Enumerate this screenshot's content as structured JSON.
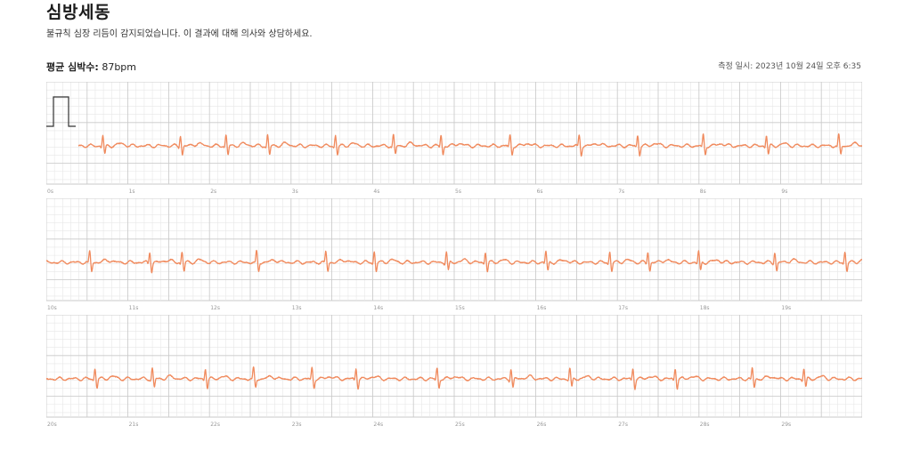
{
  "header": {
    "title": "심방세동",
    "subtitle": "불규칙 심장 리듬이 감지되었습니다. 이 결과에 대해 의사와 상담하세요.",
    "avg_label": "평균 심박수:",
    "avg_value": "87bpm",
    "timestamp": "측정 일시: 2023년 10월 24일 오후 6:35"
  },
  "colors": {
    "trace": "#f08a5d",
    "grid_minor": "#e7e7e7",
    "grid_major": "#c9c9c9",
    "calibration": "#333333"
  },
  "strips": [
    {
      "ticks": [
        "0s",
        "1s",
        "2s",
        "3s",
        "4s",
        "5s",
        "6s",
        "7s",
        "8s",
        "9s"
      ],
      "calibration": true
    },
    {
      "ticks": [
        "10s",
        "11s",
        "12s",
        "13s",
        "14s",
        "15s",
        "16s",
        "17s",
        "18s",
        "19s"
      ],
      "calibration": false
    },
    {
      "ticks": [
        "20s",
        "21s",
        "22s",
        "23s",
        "24s",
        "25s",
        "26s",
        "27s",
        "28s",
        "29s"
      ],
      "calibration": false
    }
  ],
  "rhythm": {
    "seconds_per_strip": 10,
    "mean_bpm": 87,
    "irregular": true
  }
}
